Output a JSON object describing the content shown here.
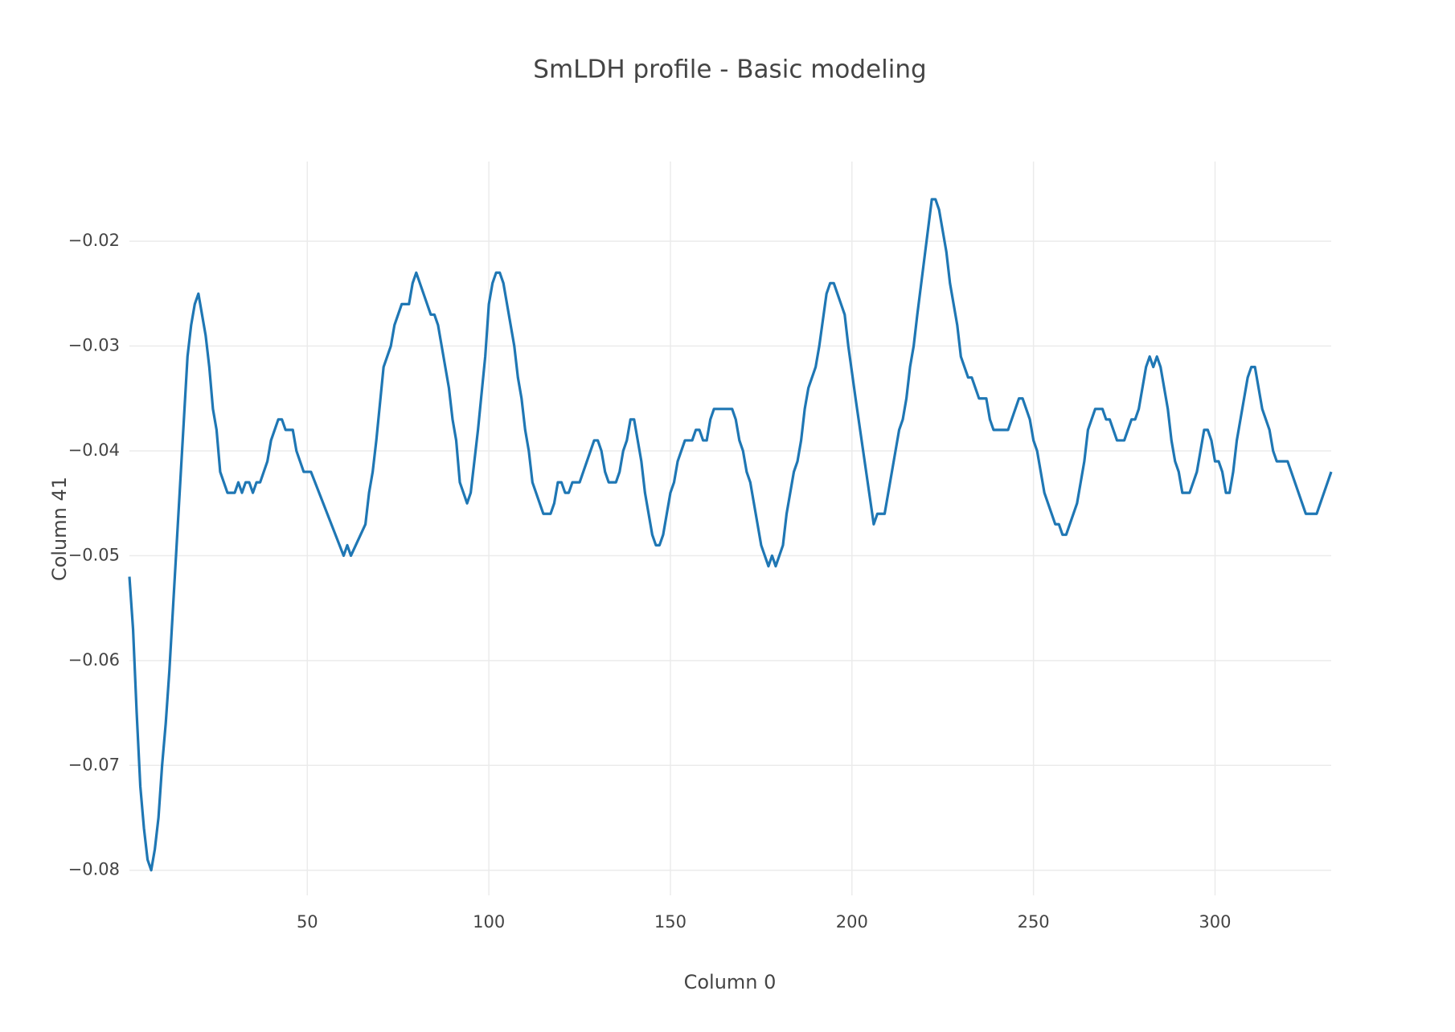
{
  "chart_data": {
    "type": "line",
    "title": "SmLDH profile - Basic modeling",
    "x_label": "Column 0",
    "y_label": "Column 41",
    "xlim": [
      1,
      332
    ],
    "ylim": [
      -0.0824,
      -0.0124
    ],
    "xticks": [
      50,
      100,
      150,
      200,
      250,
      300
    ],
    "yticks": [
      {
        "value": -0.08,
        "label": "−0.08"
      },
      {
        "value": -0.07,
        "label": "−0.07"
      },
      {
        "value": -0.06,
        "label": "−0.06"
      },
      {
        "value": -0.05,
        "label": "−0.05"
      },
      {
        "value": -0.04,
        "label": "−0.04"
      },
      {
        "value": -0.03,
        "label": "−0.03"
      },
      {
        "value": -0.02,
        "label": "−0.02"
      }
    ],
    "grid": true,
    "x": [
      1,
      2,
      3,
      4,
      5,
      6,
      7,
      8,
      9,
      10,
      11,
      12,
      13,
      14,
      15,
      16,
      17,
      18,
      19,
      20,
      21,
      22,
      23,
      24,
      25,
      26,
      28,
      30,
      31,
      32,
      33,
      34,
      35,
      36,
      37,
      39,
      40,
      42,
      43,
      44,
      46,
      47,
      49,
      51,
      60,
      61,
      62,
      66,
      67,
      68,
      69,
      71,
      73,
      74,
      75,
      76,
      78,
      79,
      80,
      83,
      84,
      85,
      86,
      89,
      90,
      91,
      92,
      93,
      94,
      95,
      97,
      99,
      100,
      101,
      102,
      103,
      104,
      107,
      108,
      109,
      110,
      111,
      112,
      115,
      117,
      118,
      119,
      120,
      121,
      122,
      123,
      125,
      129,
      130,
      131,
      132,
      133,
      135,
      136,
      137,
      138,
      139,
      140,
      142,
      143,
      145,
      146,
      147,
      148,
      150,
      151,
      152,
      154,
      156,
      157,
      158,
      159,
      160,
      161,
      162,
      167,
      168,
      169,
      170,
      171,
      172,
      174,
      175,
      177,
      178,
      179,
      181,
      182,
      184,
      185,
      186,
      187,
      188,
      190,
      191,
      193,
      194,
      195,
      198,
      199,
      201,
      206,
      207,
      209,
      213,
      214,
      215,
      216,
      217,
      218,
      222,
      223,
      224,
      226,
      227,
      229,
      230,
      232,
      233,
      235,
      237,
      238,
      239,
      243,
      246,
      247,
      249,
      250,
      251,
      253,
      256,
      257,
      258,
      259,
      262,
      264,
      265,
      267,
      269,
      270,
      271,
      273,
      275,
      277,
      278,
      279,
      281,
      282,
      283,
      284,
      285,
      287,
      288,
      289,
      290,
      291,
      293,
      295,
      297,
      298,
      299,
      300,
      301,
      302,
      303,
      304,
      305,
      306,
      309,
      310,
      311,
      313,
      315,
      316,
      317,
      320,
      325,
      328,
      332
    ],
    "series": [
      {
        "name": "Column 41",
        "color": "#1f77b4",
        "values": [
          -0.052,
          -0.057,
          -0.065,
          -0.072,
          -0.076,
          -0.079,
          -0.08,
          -0.078,
          -0.075,
          -0.07,
          -0.066,
          -0.061,
          -0.055,
          -0.049,
          -0.043,
          -0.037,
          -0.031,
          -0.028,
          -0.026,
          -0.025,
          -0.027,
          -0.029,
          -0.032,
          -0.036,
          -0.038,
          -0.042,
          -0.044,
          -0.044,
          -0.043,
          -0.044,
          -0.043,
          -0.043,
          -0.044,
          -0.043,
          -0.043,
          -0.041,
          -0.039,
          -0.037,
          -0.037,
          -0.038,
          -0.038,
          -0.04,
          -0.042,
          -0.042,
          -0.05,
          -0.049,
          -0.05,
          -0.047,
          -0.044,
          -0.042,
          -0.039,
          -0.032,
          -0.03,
          -0.028,
          -0.027,
          -0.026,
          -0.026,
          -0.024,
          -0.023,
          -0.026,
          -0.027,
          -0.027,
          -0.028,
          -0.034,
          -0.037,
          -0.039,
          -0.043,
          -0.044,
          -0.045,
          -0.044,
          -0.038,
          -0.031,
          -0.026,
          -0.024,
          -0.023,
          -0.023,
          -0.024,
          -0.03,
          -0.033,
          -0.035,
          -0.038,
          -0.04,
          -0.043,
          -0.046,
          -0.046,
          -0.045,
          -0.043,
          -0.043,
          -0.044,
          -0.044,
          -0.043,
          -0.043,
          -0.039,
          -0.039,
          -0.04,
          -0.042,
          -0.043,
          -0.043,
          -0.042,
          -0.04,
          -0.039,
          -0.037,
          -0.037,
          -0.041,
          -0.044,
          -0.048,
          -0.049,
          -0.049,
          -0.048,
          -0.044,
          -0.043,
          -0.041,
          -0.039,
          -0.039,
          -0.038,
          -0.038,
          -0.039,
          -0.039,
          -0.037,
          -0.036,
          -0.036,
          -0.037,
          -0.039,
          -0.04,
          -0.042,
          -0.043,
          -0.047,
          -0.049,
          -0.051,
          -0.05,
          -0.051,
          -0.049,
          -0.046,
          -0.042,
          -0.041,
          -0.039,
          -0.036,
          -0.034,
          -0.032,
          -0.03,
          -0.025,
          -0.024,
          -0.024,
          -0.027,
          -0.03,
          -0.035,
          -0.047,
          -0.046,
          -0.046,
          -0.038,
          -0.037,
          -0.035,
          -0.032,
          -0.03,
          -0.027,
          -0.016,
          -0.016,
          -0.017,
          -0.021,
          -0.024,
          -0.028,
          -0.031,
          -0.033,
          -0.033,
          -0.035,
          -0.035,
          -0.037,
          -0.038,
          -0.038,
          -0.035,
          -0.035,
          -0.037,
          -0.039,
          -0.04,
          -0.044,
          -0.047,
          -0.047,
          -0.048,
          -0.048,
          -0.045,
          -0.041,
          -0.038,
          -0.036,
          -0.036,
          -0.037,
          -0.037,
          -0.039,
          -0.039,
          -0.037,
          -0.037,
          -0.036,
          -0.032,
          -0.031,
          -0.032,
          -0.031,
          -0.032,
          -0.036,
          -0.039,
          -0.041,
          -0.042,
          -0.044,
          -0.044,
          -0.042,
          -0.038,
          -0.038,
          -0.039,
          -0.041,
          -0.041,
          -0.042,
          -0.044,
          -0.044,
          -0.042,
          -0.039,
          -0.033,
          -0.032,
          -0.032,
          -0.036,
          -0.038,
          -0.04,
          -0.041,
          -0.041,
          -0.046,
          -0.046,
          -0.042
        ]
      }
    ]
  }
}
